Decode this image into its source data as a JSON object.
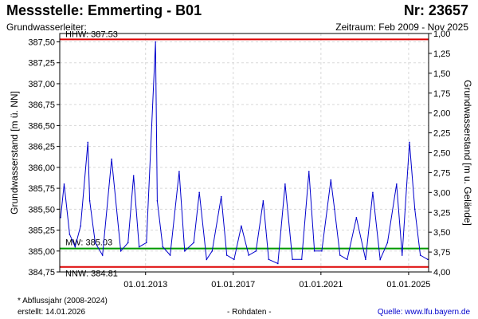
{
  "header": {
    "title": "Messstelle: Emmerting - B01",
    "number": "Nr: 23657",
    "aquifer": "Grundwasserleiter:",
    "period": "Zeitraum: Feb 2009 - Nov 2025"
  },
  "footer": {
    "footnote": "* Abflussjahr (2008-2024)",
    "created": "erstellt:  14.01.2026",
    "raw_data": "- Rohdaten -",
    "source": "Quelle: www.lfu.bayern.de"
  },
  "colors": {
    "series": "#0000cc",
    "extreme_lines": "#dd0000",
    "mean_line": "#009900",
    "grid": "#d8d8d8",
    "source_link": "#0000cc"
  },
  "chart_data": {
    "type": "line",
    "title": "",
    "ylabel_left": "Grundwasserstand [m ü. NN]",
    "ylabel_right": "Grundwasserstand [m u. Gelände]",
    "ylim_left": [
      384.75,
      387.6
    ],
    "ylim_right": [
      1.0,
      4.0
    ],
    "grid": true,
    "yticks_left": [
      "387,50",
      "387,25",
      "387,00",
      "386,75",
      "386,50",
      "386,25",
      "386,00",
      "385,75",
      "385,50",
      "385,25",
      "385,00",
      "384,75"
    ],
    "yticks_right": [
      "1,00",
      "1,25",
      "1,50",
      "1,75",
      "2,00",
      "2,25",
      "2,50",
      "2,75",
      "3,00",
      "3,25",
      "3,50",
      "3,75",
      "4,00"
    ],
    "xticks": [
      "01.01.2013",
      "01.01.2017",
      "01.01.2021",
      "01.01.2025"
    ],
    "reference_lines": [
      {
        "name": "HHW",
        "label": "HHW: 387.53",
        "value": 387.53
      },
      {
        "name": "MW",
        "label": "MW: 385.03",
        "value": 385.03
      },
      {
        "name": "NNW",
        "label": "NNW: 384.81",
        "value": 384.81
      }
    ],
    "series": [
      {
        "name": "",
        "x": [
          "2009-02",
          "2009-04",
          "2009-07",
          "2009-10",
          "2010-01",
          "2010-05",
          "2010-06",
          "2010-09",
          "2011-01",
          "2011-06",
          "2011-11",
          "2012-03",
          "2012-06",
          "2012-09",
          "2013-01",
          "2013-06",
          "2013-07",
          "2013-10",
          "2014-02",
          "2014-07",
          "2014-10",
          "2015-03",
          "2015-06",
          "2015-10",
          "2016-01",
          "2016-06",
          "2016-09",
          "2017-01",
          "2017-05",
          "2017-09",
          "2018-01",
          "2018-05",
          "2018-08",
          "2019-01",
          "2019-05",
          "2019-09",
          "2020-02",
          "2020-06",
          "2020-09",
          "2021-01",
          "2021-06",
          "2021-08",
          "2021-11",
          "2022-03",
          "2022-08",
          "2023-01",
          "2023-05",
          "2023-09",
          "2024-01",
          "2024-06",
          "2024-09",
          "2025-01",
          "2025-04",
          "2025-07",
          "2025-11"
        ],
        "values": [
          385.4,
          385.8,
          385.2,
          385.05,
          385.3,
          386.3,
          385.6,
          385.1,
          384.95,
          386.1,
          385.0,
          385.1,
          385.9,
          385.05,
          385.1,
          387.5,
          385.6,
          385.05,
          384.95,
          385.95,
          385.0,
          385.1,
          385.7,
          384.9,
          385.0,
          385.65,
          384.95,
          384.9,
          385.3,
          384.95,
          385.0,
          385.6,
          384.9,
          384.85,
          385.8,
          384.9,
          384.9,
          385.95,
          385.0,
          385.0,
          385.85,
          385.5,
          384.95,
          384.9,
          385.4,
          384.9,
          385.7,
          384.9,
          385.1,
          385.8,
          384.95,
          386.3,
          385.5,
          384.95,
          384.9
        ]
      }
    ]
  }
}
